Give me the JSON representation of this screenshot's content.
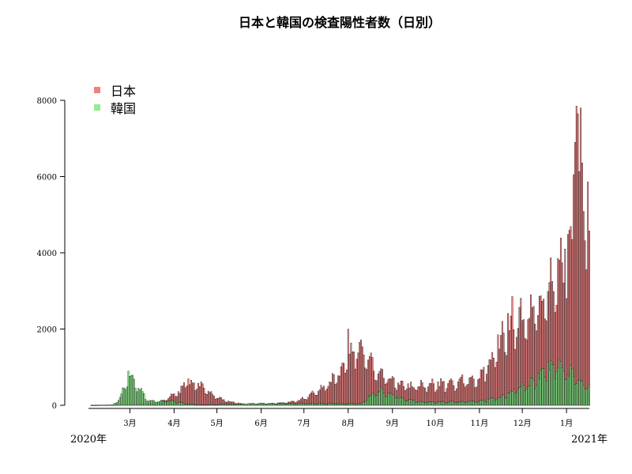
{
  "chart_data": {
    "type": "bar",
    "title": "日本と韓国の検査陽性者数（日別）",
    "xlabel": "",
    "ylabel": "",
    "ylim": [
      0,
      8000
    ],
    "yticks": [
      0,
      2000,
      4000,
      6000,
      8000
    ],
    "grid": false,
    "legend_placement": "top-left",
    "x_range": [
      "2020-02-01",
      "2021-01-17"
    ],
    "month_ticks": [
      {
        "date": "2020-03-01",
        "label": "3月"
      },
      {
        "date": "2020-04-01",
        "label": "4月"
      },
      {
        "date": "2020-05-01",
        "label": "5月"
      },
      {
        "date": "2020-06-01",
        "label": "6月"
      },
      {
        "date": "2020-07-01",
        "label": "7月"
      },
      {
        "date": "2020-08-01",
        "label": "8月"
      },
      {
        "date": "2020-09-01",
        "label": "9月"
      },
      {
        "date": "2020-10-01",
        "label": "10月"
      },
      {
        "date": "2020-11-01",
        "label": "11月"
      },
      {
        "date": "2020-12-01",
        "label": "12月"
      },
      {
        "date": "2021-01-01",
        "label": "1月"
      }
    ],
    "year_labels": [
      {
        "label": "2020年",
        "date": "2020-02-01"
      },
      {
        "label": "2021年",
        "date": "2021-01-17"
      }
    ],
    "series": [
      {
        "name": "日本",
        "color": "#f08080",
        "anchors": [
          [
            "2020-02-01",
            0
          ],
          [
            "2020-02-20",
            10
          ],
          [
            "2020-03-01",
            20
          ],
          [
            "2020-03-10",
            50
          ],
          [
            "2020-03-20",
            50
          ],
          [
            "2020-03-28",
            200
          ],
          [
            "2020-04-05",
            350
          ],
          [
            "2020-04-10",
            650
          ],
          [
            "2020-04-15",
            600
          ],
          [
            "2020-04-22",
            450
          ],
          [
            "2020-04-28",
            300
          ],
          [
            "2020-05-05",
            150
          ],
          [
            "2020-05-12",
            80
          ],
          [
            "2020-05-20",
            30
          ],
          [
            "2020-06-01",
            40
          ],
          [
            "2020-06-15",
            60
          ],
          [
            "2020-06-25",
            100
          ],
          [
            "2020-07-01",
            180
          ],
          [
            "2020-07-10",
            350
          ],
          [
            "2020-07-20",
            600
          ],
          [
            "2020-07-28",
            1000
          ],
          [
            "2020-08-03",
            1300
          ],
          [
            "2020-08-07",
            1550
          ],
          [
            "2020-08-14",
            1200
          ],
          [
            "2020-08-21",
            950
          ],
          [
            "2020-08-28",
            750
          ],
          [
            "2020-09-05",
            550
          ],
          [
            "2020-09-15",
            500
          ],
          [
            "2020-09-25",
            550
          ],
          [
            "2020-10-05",
            550
          ],
          [
            "2020-10-15",
            600
          ],
          [
            "2020-10-25",
            650
          ],
          [
            "2020-11-01",
            700
          ],
          [
            "2020-11-10",
            1300
          ],
          [
            "2020-11-18",
            2000
          ],
          [
            "2020-11-25",
            2300
          ],
          [
            "2020-12-02",
            2200
          ],
          [
            "2020-12-10",
            2600
          ],
          [
            "2020-12-17",
            2900
          ],
          [
            "2020-12-24",
            3300
          ],
          [
            "2020-12-29",
            3500
          ],
          [
            "2021-01-03",
            4000
          ],
          [
            "2021-01-06",
            6000
          ],
          [
            "2021-01-08",
            7500
          ],
          [
            "2021-01-09",
            7200
          ],
          [
            "2021-01-12",
            5600
          ],
          [
            "2021-01-16",
            5300
          ]
        ],
        "spikes": [
          [
            "2020-08-01",
            2000
          ],
          [
            "2021-01-07",
            6900
          ],
          [
            "2021-01-08",
            7850
          ],
          [
            "2021-01-09",
            7650
          ],
          [
            "2020-12-31",
            4100
          ],
          [
            "2020-12-26",
            3850
          ],
          [
            "2021-01-05",
            4350
          ],
          [
            "2021-01-06",
            6050
          ]
        ]
      },
      {
        "name": "韓国",
        "color": "#90ee90",
        "anchors": [
          [
            "2020-02-01",
            0
          ],
          [
            "2020-02-18",
            5
          ],
          [
            "2020-02-22",
            150
          ],
          [
            "2020-02-26",
            450
          ],
          [
            "2020-02-29",
            850
          ],
          [
            "2020-03-03",
            650
          ],
          [
            "2020-03-06",
            500
          ],
          [
            "2020-03-10",
            350
          ],
          [
            "2020-03-14",
            120
          ],
          [
            "2020-03-20",
            100
          ],
          [
            "2020-03-26",
            110
          ],
          [
            "2020-04-01",
            100
          ],
          [
            "2020-04-10",
            40
          ],
          [
            "2020-04-20",
            10
          ],
          [
            "2020-05-10",
            30
          ],
          [
            "2020-06-01",
            50
          ],
          [
            "2020-07-01",
            50
          ],
          [
            "2020-08-10",
            40
          ],
          [
            "2020-08-16",
            250
          ],
          [
            "2020-08-24",
            380
          ],
          [
            "2020-08-30",
            300
          ],
          [
            "2020-09-10",
            160
          ],
          [
            "2020-09-20",
            100
          ],
          [
            "2020-10-01",
            80
          ],
          [
            "2020-11-01",
            110
          ],
          [
            "2020-11-15",
            200
          ],
          [
            "2020-11-25",
            400
          ],
          [
            "2020-12-01",
            500
          ],
          [
            "2020-12-10",
            650
          ],
          [
            "2020-12-18",
            1000
          ],
          [
            "2020-12-25",
            1150
          ],
          [
            "2021-01-01",
            900
          ],
          [
            "2021-01-08",
            700
          ],
          [
            "2021-01-16",
            550
          ]
        ],
        "spikes": [
          [
            "2020-02-29",
            900
          ]
        ]
      }
    ]
  }
}
